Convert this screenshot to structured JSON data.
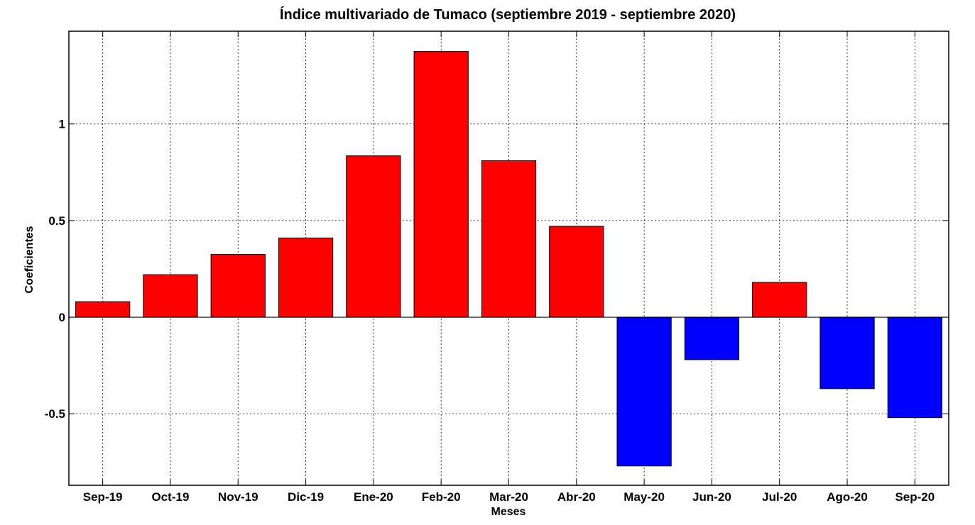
{
  "chart_data": {
    "type": "bar",
    "title": "Índice multivariado de Tumaco (septiembre 2019 - septiembre 2020)",
    "xlabel": "Meses",
    "ylabel": "Coeficientes",
    "categories": [
      "Sep-19",
      "Oct-19",
      "Nov-19",
      "Dic-19",
      "Ene-20",
      "Feb-20",
      "Mar-20",
      "Abr-20",
      "May-20",
      "Jun-20",
      "Jul-20",
      "Ago-20",
      "Sep-20"
    ],
    "values": [
      0.08,
      0.22,
      0.325,
      0.41,
      0.835,
      1.375,
      0.81,
      0.47,
      -0.77,
      -0.22,
      0.18,
      -0.37,
      -0.52
    ],
    "ylim": [
      -0.87,
      1.48
    ],
    "yticks": [
      -0.5,
      0,
      0.5,
      1
    ],
    "ytick_labels": [
      "-0.5",
      "0",
      "0.5",
      "1"
    ],
    "grid": true,
    "positive_color": "#ff0000",
    "negative_color": "#0000ff"
  }
}
